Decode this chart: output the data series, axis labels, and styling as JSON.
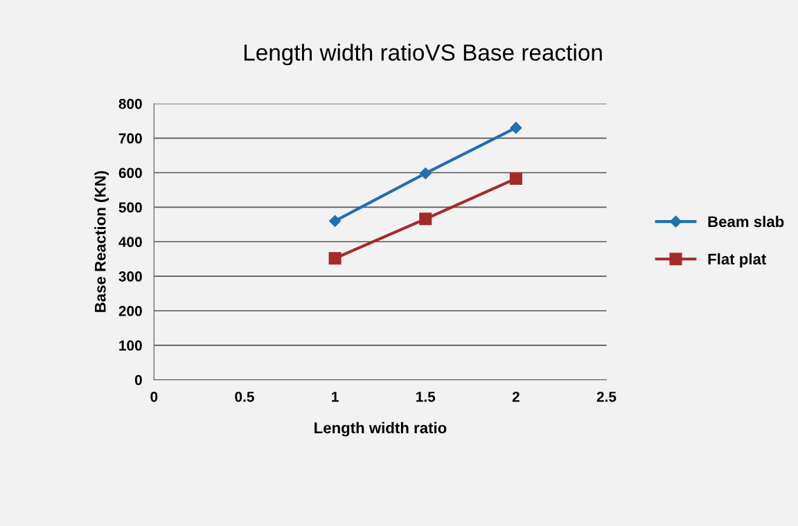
{
  "chart_data": {
    "type": "line",
    "title": "Length width ratioVS Base reaction",
    "xlabel": "Length width ratio",
    "ylabel": "Base Reaction (KN)",
    "x": [
      1,
      1.5,
      2
    ],
    "series": [
      {
        "name": "Beam slab",
        "color": "#1f6fb4",
        "marker": "diamond",
        "values": [
          460,
          598,
          730
        ]
      },
      {
        "name": "Flat plat",
        "color": "#a52a2a",
        "marker": "square",
        "values": [
          352,
          466,
          583
        ]
      }
    ],
    "xlim": [
      0,
      2.5
    ],
    "xticks": [
      0,
      0.5,
      1,
      1.5,
      2,
      2.5
    ],
    "ylim": [
      0,
      800
    ],
    "yticks": [
      0,
      100,
      200,
      300,
      400,
      500,
      600,
      700,
      800
    ],
    "grid": "y",
    "legend": "right",
    "line_style": "solid"
  }
}
